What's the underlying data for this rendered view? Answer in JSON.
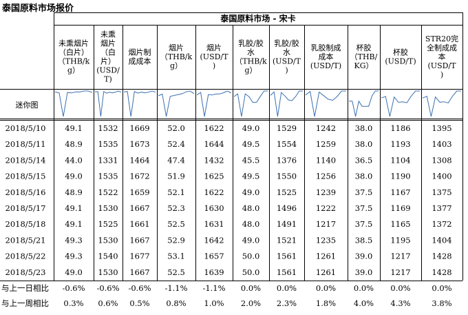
{
  "title": "泰国原料市场报价",
  "market": "泰国原料市场 - 宋卡",
  "sparkline_label": "迷你图",
  "columns": [
    {
      "label": [
        "未熏烟片",
        "（白片）",
        "（THB/k",
        "g）"
      ]
    },
    {
      "label": [
        "未熏",
        "烟片",
        "（白",
        "片）",
        "(USD/",
        "T)"
      ]
    },
    {
      "label": [
        "烟片制",
        "成成本"
      ]
    },
    {
      "label": [
        "烟片",
        "（THB/k",
        "g）"
      ]
    },
    {
      "label": [
        "烟片",
        "(USD/T",
        ")"
      ]
    },
    {
      "label": [
        "乳胶/胶",
        "水",
        "（THB/k",
        "g）"
      ]
    },
    {
      "label": [
        "乳胶/胶",
        "水",
        "(USD/T",
        ")"
      ]
    },
    {
      "label": [
        "乳胶制成",
        "成本",
        "(USD/T)"
      ]
    },
    {
      "label": [
        "杯胶",
        "（THB/",
        "KG）"
      ]
    },
    {
      "label": [
        "杯胶",
        "(USD/T)"
      ]
    },
    {
      "label": [
        "STR20完",
        "全制成成",
        "本",
        "(USD/T",
        ")"
      ]
    }
  ],
  "chart_data": {
    "type": "table",
    "dates": [
      "2018/5/10",
      "2018/5/11",
      "2018/5/14",
      "2018/5/15",
      "2018/5/16",
      "2018/5/17",
      "2018/5/18",
      "2018/5/21",
      "2018/5/22",
      "2018/5/23"
    ],
    "rows": [
      [
        "49.1",
        "1532",
        "1669",
        "52.0",
        "1622",
        "49.0",
        "1529",
        "1242",
        "38.0",
        "1186",
        "1395"
      ],
      [
        "48.9",
        "1535",
        "1673",
        "52.4",
        "1644",
        "49.5",
        "1554",
        "1259",
        "38.0",
        "1193",
        "1403"
      ],
      [
        "44.0",
        "1331",
        "1464",
        "47.4",
        "1432",
        "45.5",
        "1376",
        "1140",
        "36.5",
        "1104",
        "1308"
      ],
      [
        "49.0",
        "1535",
        "1672",
        "51.9",
        "1625",
        "49.5",
        "1550",
        "1256",
        "38.0",
        "1190",
        "1400"
      ],
      [
        "48.9",
        "1522",
        "1659",
        "52.1",
        "1622",
        "49.0",
        "1525",
        "1239",
        "37.5",
        "1167",
        "1375"
      ],
      [
        "49.1",
        "1530",
        "1667",
        "52.3",
        "1630",
        "48.0",
        "1496",
        "1222",
        "37.5",
        "1169",
        "1377"
      ],
      [
        "49.1",
        "1525",
        "1661",
        "52.5",
        "1631",
        "48.0",
        "1491",
        "1217",
        "37.5",
        "1165",
        "1372"
      ],
      [
        "49.3",
        "1530",
        "1667",
        "52.9",
        "1642",
        "49.0",
        "1521",
        "1235",
        "38.5",
        "1195",
        "1404"
      ],
      [
        "49.3",
        "1540",
        "1677",
        "53.1",
        "1657",
        "50.0",
        "1561",
        "1261",
        "39.0",
        "1217",
        "1428"
      ],
      [
        "49.0",
        "1530",
        "1667",
        "52.5",
        "1639",
        "50.0",
        "1561",
        "1261",
        "39.0",
        "1217",
        "1428"
      ]
    ],
    "summary": [
      {
        "label": "与上一日相比",
        "values": [
          "-0.6%",
          "-0.6%",
          "-0.6%",
          "-1.1%",
          "-1.1%",
          "0.0%",
          "0.0%",
          "0.0%",
          "0.0%",
          "0.0%",
          "0.0%"
        ]
      },
      {
        "label": "与上一周相比",
        "values": [
          "0.3%",
          "0.6%",
          "0.5%",
          "0.8%",
          "1.0%",
          "2.0%",
          "2.3%",
          "1.8%",
          "4.0%",
          "4.3%",
          "3.8%"
        ]
      }
    ]
  },
  "colors": {
    "sparkline": "#3a6fb0",
    "border": "#000000"
  }
}
